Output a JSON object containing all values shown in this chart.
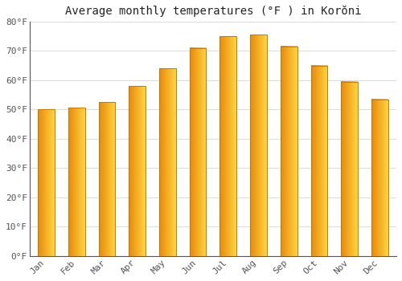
{
  "title": "Average monthly temperatures (°F ) in Korŏni",
  "months": [
    "Jan",
    "Feb",
    "Mar",
    "Apr",
    "May",
    "Jun",
    "Jul",
    "Aug",
    "Sep",
    "Oct",
    "Nov",
    "Dec"
  ],
  "values": [
    50,
    50.5,
    52.5,
    58,
    64,
    71,
    75,
    75.5,
    71.5,
    65,
    59.5,
    53.5
  ],
  "bar_color_left": "#E8890A",
  "bar_color_right": "#FFD540",
  "bar_color_mid": "#FFA500",
  "ylim": [
    0,
    80
  ],
  "yticks": [
    0,
    10,
    20,
    30,
    40,
    50,
    60,
    70,
    80
  ],
  "ytick_labels": [
    "0°F",
    "10°F",
    "20°F",
    "30°F",
    "40°F",
    "50°F",
    "60°F",
    "70°F",
    "80°F"
  ],
  "background_color": "#FFFFFF",
  "grid_color": "#DDDDDD",
  "title_fontsize": 10,
  "tick_fontsize": 8,
  "bar_width": 0.55
}
